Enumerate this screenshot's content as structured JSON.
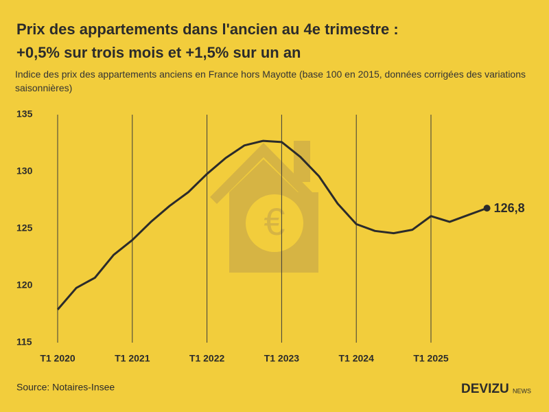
{
  "chart_data": {
    "type": "line",
    "title": "Prix des appartements dans l'ancien au 4e trimestre :",
    "title_line2": "+0,5% sur trois mois et +1,5% sur un an",
    "subtitle": "Indice des prix des appartements anciens en France hors Mayotte (base 100 en 2015, données corrigées des variations saisonnières)",
    "source": "Source: Notaires-Insee",
    "brand": "DEVIZU",
    "brand_suffix": "NEWS",
    "categories": [
      "T1 2020",
      null,
      null,
      null,
      "T1 2021",
      null,
      null,
      null,
      "T1 2022",
      null,
      null,
      null,
      "T1 2023",
      null,
      null,
      null,
      "T1 2024",
      null,
      null,
      null,
      "T1 2025",
      null,
      null,
      null
    ],
    "values": [
      117.9,
      119.8,
      120.7,
      122.7,
      124.0,
      125.6,
      127.0,
      128.2,
      129.8,
      131.2,
      132.3,
      132.7,
      132.6,
      131.3,
      129.6,
      127.2,
      125.4,
      124.8,
      124.6,
      124.9,
      126.1,
      125.6,
      126.2,
      126.8
    ],
    "value_labels": [
      null,
      null,
      null,
      null,
      null,
      null,
      null,
      null,
      null,
      null,
      null,
      null,
      null,
      null,
      null,
      null,
      null,
      null,
      null,
      null,
      null,
      null,
      null,
      "126,8"
    ],
    "color": "#2b2b2b",
    "ylim": [
      115,
      135
    ],
    "yticks": [
      115,
      120,
      125,
      130,
      135
    ],
    "grid": true
  }
}
